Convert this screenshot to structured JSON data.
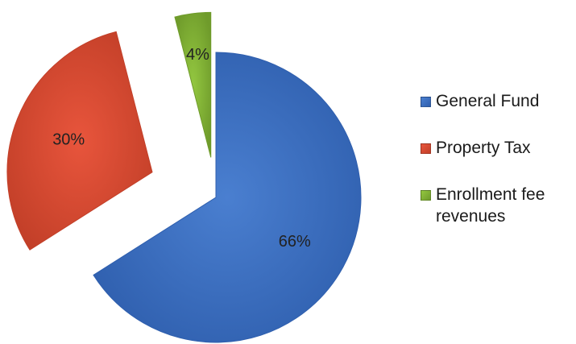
{
  "chart_data": {
    "type": "pie",
    "title": "",
    "legend_position": "right",
    "slices": [
      {
        "label": "General Fund",
        "value": 66,
        "display": "66%",
        "color": "#4a7fd0",
        "edge": "#2f5fae"
      },
      {
        "label": "Property Tax",
        "value": 30,
        "display": "30%",
        "color": "#e8553c",
        "edge": "#c23f28"
      },
      {
        "label": "Enrollment fee revenues",
        "value": 4,
        "display": "4%",
        "color": "#93c740",
        "edge": "#6f9b2b"
      }
    ]
  }
}
